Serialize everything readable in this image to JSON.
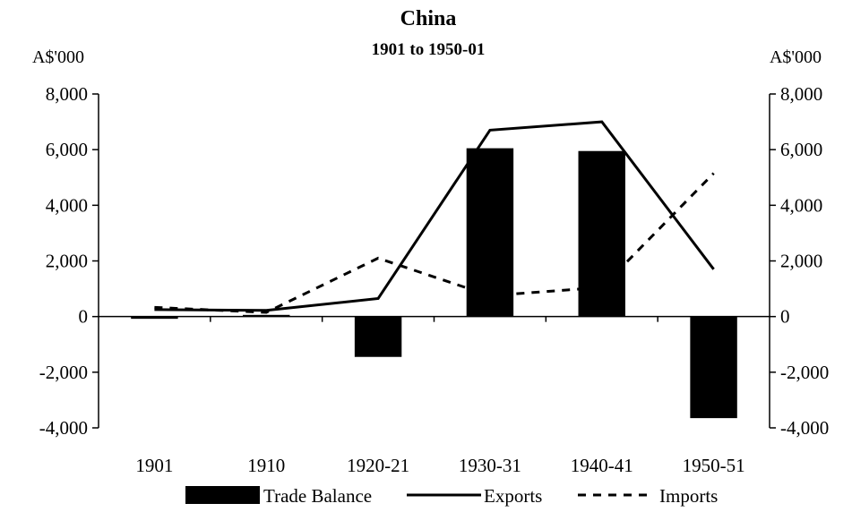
{
  "chart_data": {
    "type": "bar",
    "title": "China",
    "subtitle": "1901 to 1950-01",
    "ylabel_left": "A$'000",
    "ylabel_right": "A$'000",
    "categories": [
      "1901",
      "1910",
      "1920-21",
      "1930-31",
      "1940-41",
      "1950-51"
    ],
    "ylim": [
      -4000,
      8000
    ],
    "yticks": [
      -4000,
      -2000,
      0,
      2000,
      4000,
      6000,
      8000
    ],
    "ytick_labels": [
      "-4,000",
      "-2,000",
      "0",
      "2,000",
      "4,000",
      "6,000",
      "8,000"
    ],
    "series": [
      {
        "name": "Trade Balance",
        "type": "bar",
        "color": "#000000",
        "values": [
          -80,
          60,
          -1450,
          6050,
          5950,
          -3650
        ]
      },
      {
        "name": "Exports",
        "type": "line",
        "style": "solid",
        "color": "#000000",
        "values": [
          250,
          220,
          650,
          6700,
          7000,
          1700
        ]
      },
      {
        "name": "Imports",
        "type": "line",
        "style": "dashed",
        "color": "#000000",
        "values": [
          330,
          150,
          2100,
          750,
          1050,
          5150
        ]
      }
    ],
    "legend_position": "bottom",
    "grid": false
  }
}
